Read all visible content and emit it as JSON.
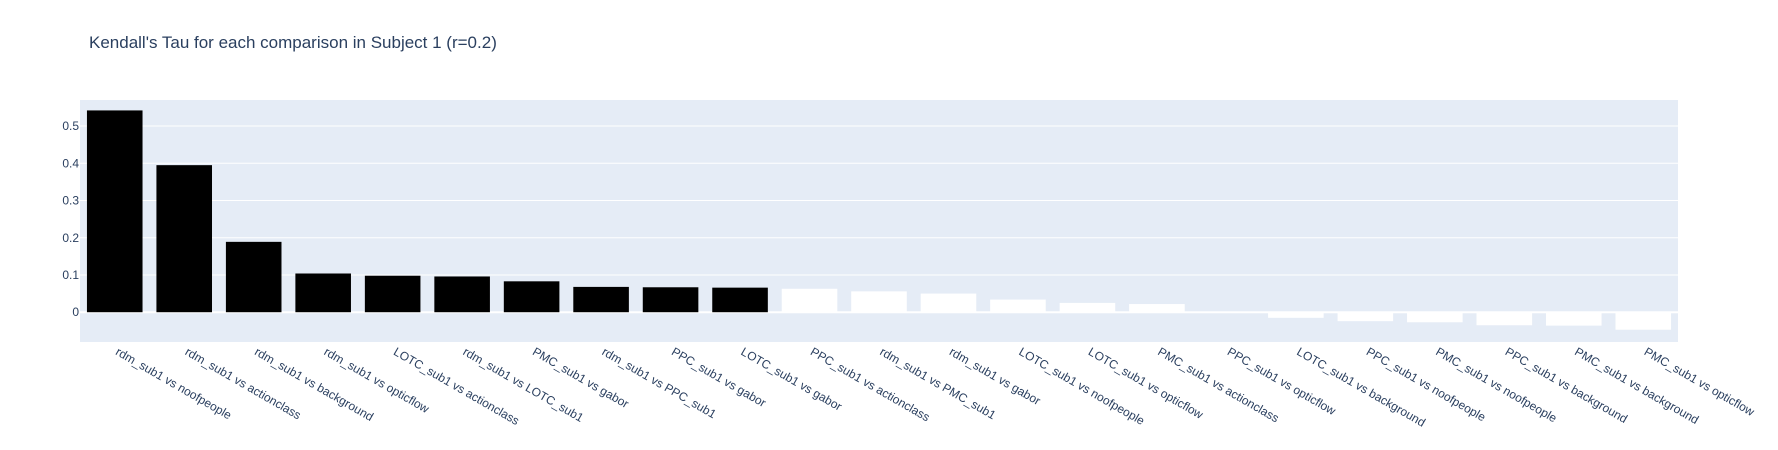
{
  "chart_data": {
    "type": "bar",
    "title": "Kendall's Tau for each comparison in Subject 1 (r=0.2)",
    "xlabel": "",
    "ylabel": "",
    "ylim": [
      -0.08,
      0.57
    ],
    "yticks": [
      0,
      0.1,
      0.2,
      0.3,
      0.4,
      0.5
    ],
    "ytick_labels": [
      "0",
      "0.1",
      "0.2",
      "0.3",
      "0.4",
      "0.5"
    ],
    "grid": true,
    "colors": {
      "plot_bg": "#e5ecf6",
      "grid": "#ffffff",
      "significant": "#000000",
      "nonsignificant": "#ffffff"
    },
    "categories": [
      "rdm_sub1 vs noofpeople",
      "rdm_sub1 vs actionclass",
      "rdm_sub1 vs background",
      "rdm_sub1 vs opticflow",
      "LOTC_sub1 vs actionclass",
      "rdm_sub1 vs LOTC_sub1",
      "PMC_sub1 vs gabor",
      "rdm_sub1 vs PPC_sub1",
      "PPC_sub1 vs gabor",
      "LOTC_sub1 vs gabor",
      "PPC_sub1 vs actionclass",
      "rdm_sub1 vs PMC_sub1",
      "rdm_sub1 vs gabor",
      "LOTC_sub1 vs noofpeople",
      "LOTC_sub1 vs opticflow",
      "PMC_sub1 vs actionclass",
      "PPC_sub1 vs opticflow",
      "LOTC_sub1 vs background",
      "PPC_sub1 vs noofpeople",
      "PMC_sub1 vs noofpeople",
      "PPC_sub1 vs background",
      "PMC_sub1 vs background",
      "PMC_sub1 vs opticflow"
    ],
    "values": [
      0.542,
      0.395,
      0.189,
      0.104,
      0.098,
      0.096,
      0.083,
      0.068,
      0.067,
      0.066,
      0.063,
      0.056,
      0.05,
      0.034,
      0.025,
      0.022,
      -0.002,
      -0.015,
      -0.024,
      -0.027,
      -0.035,
      -0.036,
      -0.047
    ],
    "bar_colors": [
      "#000000",
      "#000000",
      "#000000",
      "#000000",
      "#000000",
      "#000000",
      "#000000",
      "#000000",
      "#000000",
      "#000000",
      "#ffffff",
      "#ffffff",
      "#ffffff",
      "#ffffff",
      "#ffffff",
      "#ffffff",
      "#ffffff",
      "#ffffff",
      "#ffffff",
      "#ffffff",
      "#ffffff",
      "#ffffff",
      "#ffffff"
    ]
  }
}
